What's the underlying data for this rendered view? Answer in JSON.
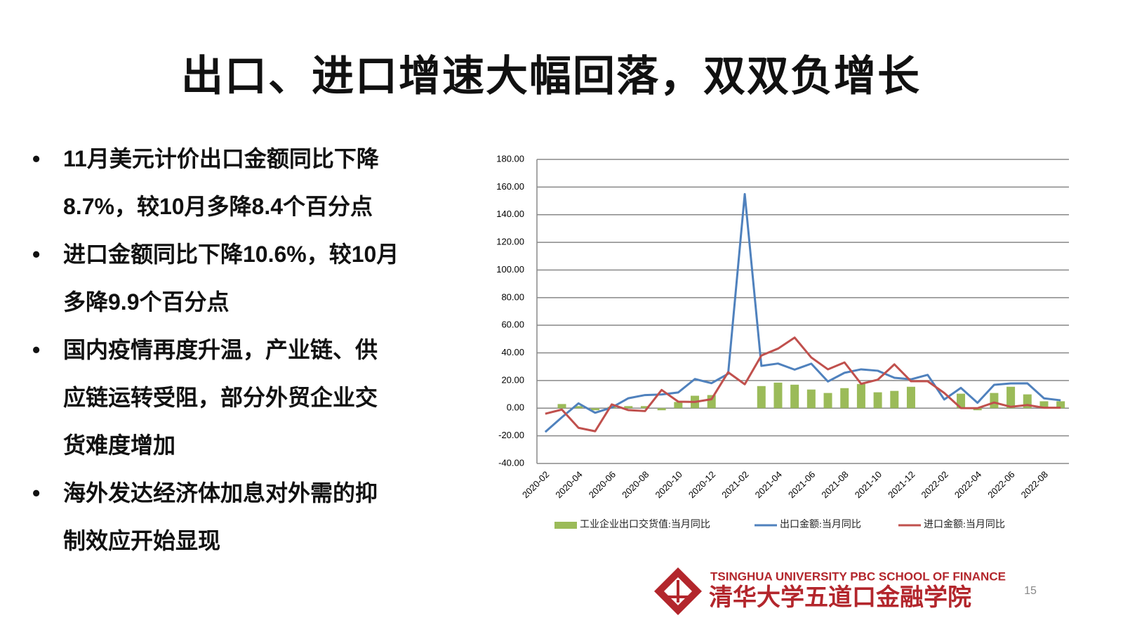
{
  "title": "出口、进口增速大幅回落，双双负增长",
  "bullets": [
    [
      "11月美元计价出口金额同比下降",
      "8.7%，较10月多降8.4个百分点"
    ],
    [
      "进口金额同比下降10.6%，较10月",
      "多降9.9个百分点"
    ],
    [
      "国内疫情再度升温，产业链、供",
      "应链运转受阻，部分外贸企业交",
      "货难度增加"
    ],
    [
      "海外发达经济体加息对外需的抑",
      "制效应开始显现"
    ]
  ],
  "chart_data": {
    "type": "line",
    "categories": [
      "2020-02",
      null,
      "2020-04",
      null,
      "2020-06",
      null,
      "2020-08",
      null,
      "2020-10",
      null,
      "2020-12",
      null,
      "2021-02",
      null,
      "2021-04",
      null,
      "2021-06",
      null,
      "2021-08",
      null,
      "2021-10",
      null,
      "2021-12",
      null,
      "2022-02",
      null,
      "2022-04",
      null,
      "2022-06",
      null,
      "2022-08",
      null
    ],
    "series": [
      {
        "name": "工业企业出口交货值:当月同比",
        "type": "bar",
        "color": "#9bbb59",
        "values": [
          null,
          3,
          1.5,
          -1.5,
          1,
          1.5,
          1.5,
          -1.5,
          4.5,
          9,
          9.5,
          null,
          null,
          16,
          18.5,
          17,
          13.5,
          11,
          14.5,
          17.5,
          11.5,
          12.5,
          15.5,
          null,
          null,
          10.5,
          -1.5,
          11,
          15.5,
          10,
          5,
          5
        ]
      },
      {
        "name": "出口金额:当月同比",
        "type": "line",
        "color": "#4f81bd",
        "values": [
          -17.2,
          -6.6,
          3.5,
          -3.3,
          0.5,
          7.2,
          9.5,
          9.9,
          11.4,
          21.1,
          18.1,
          24.9,
          154.9,
          30.6,
          32.3,
          27.9,
          32.2,
          19.3,
          25.6,
          28.1,
          27.1,
          22,
          20.9,
          24.1,
          6.3,
          14.7,
          3.9,
          16.9,
          17.9,
          18,
          7.1,
          5.7
        ]
      },
      {
        "name": "进口金额:当月同比",
        "type": "line",
        "color": "#c0504d",
        "values": [
          -4,
          -1,
          -14.2,
          -16.7,
          2.7,
          -1.4,
          -2.1,
          13.2,
          4.7,
          4.5,
          6.5,
          26,
          17.3,
          38.1,
          43.1,
          51.1,
          36.7,
          28.1,
          33.1,
          17.6,
          20.6,
          31.7,
          19.5,
          19.5,
          11,
          0.1,
          0,
          4.1,
          1,
          2.3,
          0.3,
          0.3
        ]
      }
    ],
    "ylim": [
      -40,
      180
    ],
    "yticks": [
      {
        "value": -40,
        "label": "-40.00"
      },
      {
        "value": -20,
        "label": "-20.00"
      },
      {
        "value": 0,
        "label": "0.00"
      },
      {
        "value": 20,
        "label": "20.00"
      },
      {
        "value": 40,
        "label": "40.00"
      },
      {
        "value": 60,
        "label": "60.00"
      },
      {
        "value": 80,
        "label": "80.00"
      },
      {
        "value": 100,
        "label": "100.00"
      },
      {
        "value": 120,
        "label": "120.00"
      },
      {
        "value": 140,
        "label": "140.00"
      },
      {
        "value": 160,
        "label": "160.00"
      },
      {
        "value": 180,
        "label": "180.00"
      }
    ],
    "grid": true
  },
  "footer": {
    "school_en": "TSINGHUA UNIVERSITY PBC SCHOOL OF FINANCE",
    "school_cn": "清华大学五道口金融学院",
    "page": "15"
  }
}
